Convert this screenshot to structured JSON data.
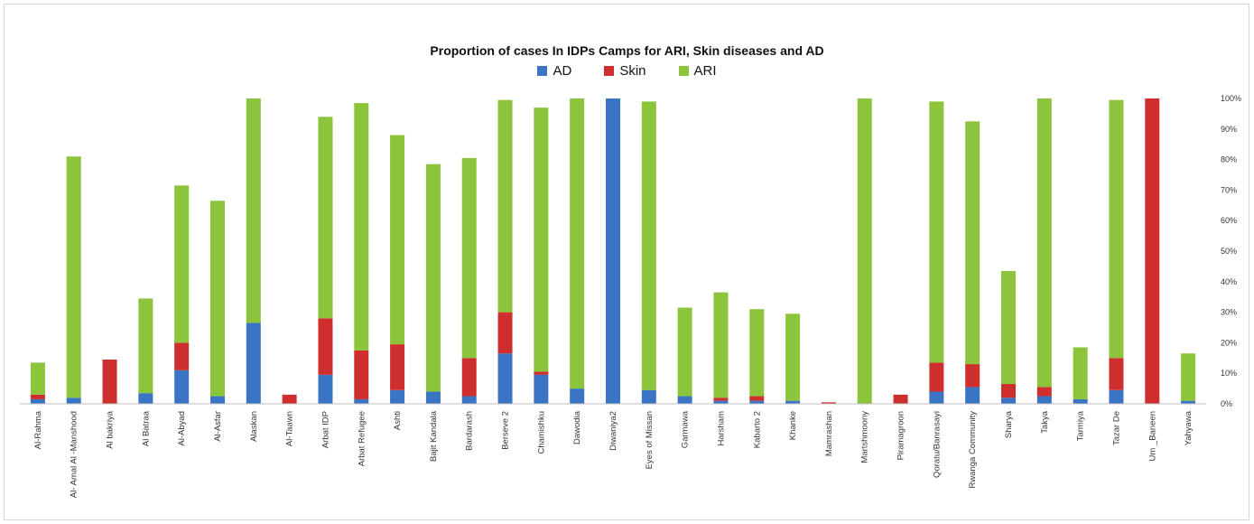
{
  "chart_data": {
    "type": "bar",
    "stacked": true,
    "title": "Proportion of cases In IDPs Camps for ARI, Skin diseases and AD",
    "xlabel": "",
    "ylabel": "",
    "ylim": [
      0,
      100
    ],
    "y_axis_position": "right",
    "y_ticks": [
      "0%",
      "10%",
      "20%",
      "30%",
      "40%",
      "50%",
      "60%",
      "70%",
      "80%",
      "90%",
      "100%"
    ],
    "legend_position": "top-center",
    "grid": false,
    "categories": [
      "Al-Rahma",
      "Al- Amal Al -Manshood",
      "Al bakriya",
      "Al Batraa",
      "Al-Abyad",
      "Al-Asfar",
      "Alaskan",
      "Al-Taawn",
      "Arbat IDP",
      "Arbat Refugee",
      "Ashti",
      "Bajit Kandala",
      "Bardarash",
      "Berseve 2",
      "Chamishku",
      "Dawodia",
      "Diwaniya2",
      "Eyes of Missan",
      "Garmawa",
      "Harsham",
      "Kabarto 2",
      "Khanke",
      "Mamrashan",
      "Martshmoony",
      "Piramagroon",
      "Qoratu/Banrasayi",
      "Rwanga Community",
      "Sharya",
      "Takya",
      "Tarmiya",
      "Tazar De",
      "Um _Baneen",
      "Yahyawa"
    ],
    "series": [
      {
        "name": "AD",
        "color": "#3a74c4",
        "values": [
          1.5,
          2,
          0,
          3.5,
          11,
          2.5,
          26.5,
          0,
          9.5,
          1.5,
          4.5,
          4,
          2.5,
          16.5,
          9.5,
          5,
          100,
          4.5,
          2.5,
          1,
          1,
          1,
          0,
          0,
          0,
          4,
          5.5,
          2,
          2.5,
          1.5,
          4.5,
          0,
          1
        ]
      },
      {
        "name": "Skin",
        "color": "#cf2e2e",
        "values": [
          1.5,
          0,
          14.5,
          0,
          9,
          0,
          0,
          3,
          18.5,
          16,
          15,
          0,
          12.5,
          13.5,
          1,
          0,
          0,
          0,
          0,
          1,
          1.5,
          0,
          0.5,
          0,
          3,
          9.5,
          7.5,
          4.5,
          3,
          0,
          10.5,
          100,
          0
        ]
      },
      {
        "name": "ARI",
        "color": "#8cc43b",
        "values": [
          10.5,
          79,
          0,
          31,
          51.5,
          64,
          73.5,
          0,
          66,
          81,
          68.5,
          74.5,
          65.5,
          69.5,
          86.5,
          95,
          0,
          94.5,
          29,
          34.5,
          28.5,
          28.5,
          0,
          100,
          0,
          85.5,
          79.5,
          37,
          94.5,
          17,
          84.5,
          0,
          15.5
        ]
      }
    ]
  }
}
